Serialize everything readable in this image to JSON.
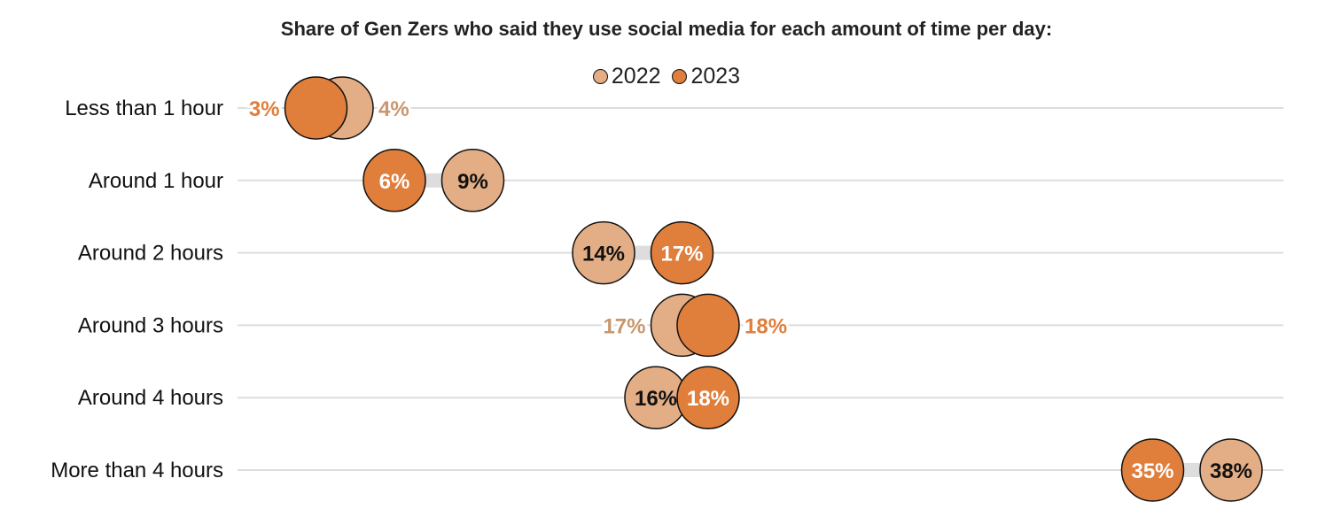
{
  "chart_data": {
    "type": "dot",
    "title": "Share of Gen Zers who said they use social media for each amount of time per day:",
    "categories": [
      "Less than 1 hour",
      "Around 1 hour",
      "Around 2 hours",
      "Around 3 hours",
      "Around 4 hours",
      "More than 4 hours"
    ],
    "series": [
      {
        "name": "2022",
        "values": [
          4,
          9,
          14,
          17,
          16,
          38
        ],
        "labels": [
          "4%",
          "9%",
          "14%",
          "17%",
          "16%",
          "38%"
        ],
        "color": "#E3AE85",
        "label_color": "#C9966D"
      },
      {
        "name": "2023",
        "values": [
          3,
          6,
          17,
          18,
          18,
          35
        ],
        "labels": [
          "3%",
          "6%",
          "17%",
          "18%",
          "18%",
          "35%"
        ],
        "color": "#E07E3C",
        "label_color": "#E07E3C"
      }
    ],
    "xlim": [
      0,
      40
    ],
    "grid": true,
    "legend": "top-center",
    "colors": {
      "grid": "#DDDDDD",
      "connector": "#DDDDDD"
    }
  }
}
